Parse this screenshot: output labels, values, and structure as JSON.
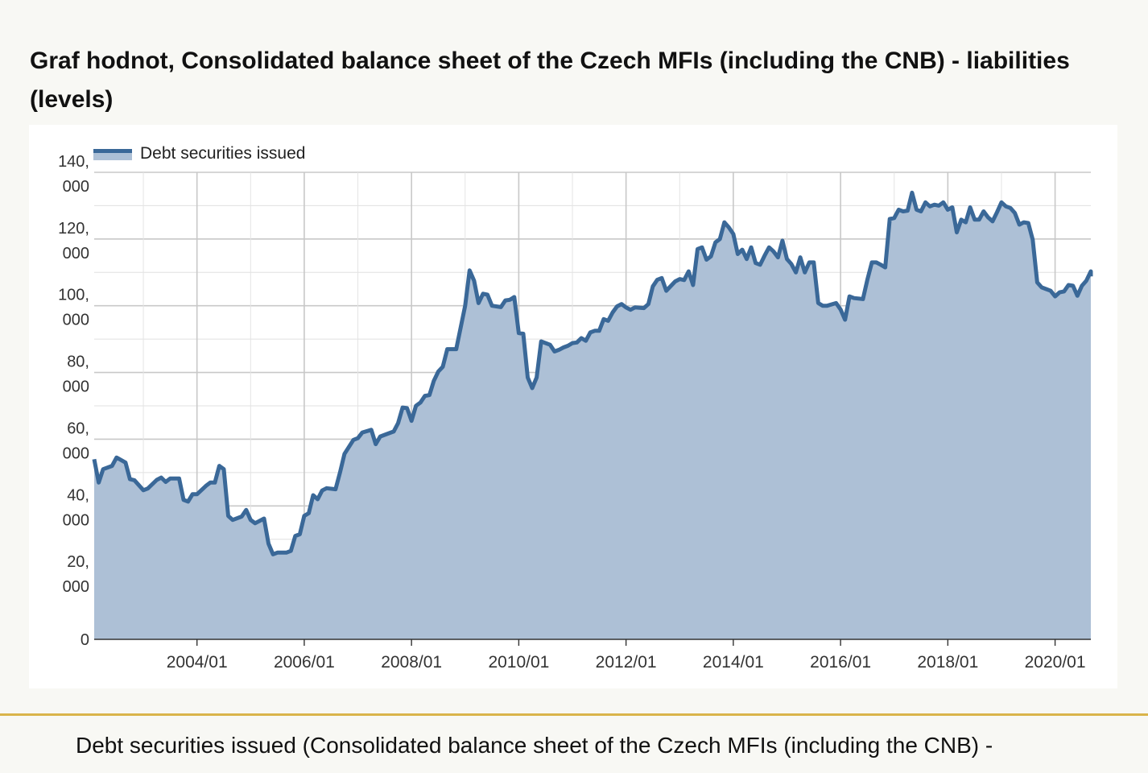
{
  "page": {
    "title": "Graf hodnot, Consolidated balance sheet of the Czech MFIs (including the CNB) - liabilities (levels)",
    "footer_caption": "Debt securities issued (Consolidated balance sheet of the Czech MFIs (including the CNB) -"
  },
  "colors": {
    "line": "#3a6898",
    "area": "#adc0d6",
    "grid": "#cccccc",
    "accent_divider": "#d9b44a"
  },
  "chart_data": {
    "type": "area",
    "title": "",
    "xlabel": "",
    "ylabel": "",
    "legend_position": "top-left",
    "grid": true,
    "x_ticks": [
      "2004/01",
      "2006/01",
      "2008/01",
      "2010/01",
      "2012/01",
      "2014/01",
      "2016/01",
      "2018/01",
      "2020/01"
    ],
    "y_ticks": [
      {
        "value": 0,
        "lines": [
          "0"
        ]
      },
      {
        "value": 20000,
        "lines": [
          "20,",
          "000"
        ]
      },
      {
        "value": 40000,
        "lines": [
          "40,",
          "000"
        ]
      },
      {
        "value": 60000,
        "lines": [
          "60,",
          "000"
        ]
      },
      {
        "value": 80000,
        "lines": [
          "80,",
          "000"
        ]
      },
      {
        "value": 100000,
        "lines": [
          "100,",
          "000"
        ]
      },
      {
        "value": 120000,
        "lines": [
          "120,",
          "000"
        ]
      },
      {
        "value": 140000,
        "lines": [
          "140,",
          "000"
        ]
      }
    ],
    "xlim": [
      "2002/02",
      "2020/09"
    ],
    "ylim": [
      0,
      140000
    ],
    "series": [
      {
        "name": "Debt securities issued",
        "points": [
          [
            "2002/02",
            54000
          ],
          [
            "2002/03",
            47000
          ],
          [
            "2002/04",
            51000
          ],
          [
            "2002/06",
            52000
          ],
          [
            "2002/07",
            54500
          ],
          [
            "2002/09",
            53000
          ],
          [
            "2002/10",
            48000
          ],
          [
            "2002/11",
            47700
          ],
          [
            "2003/01",
            44700
          ],
          [
            "2003/02",
            45200
          ],
          [
            "2003/04",
            47800
          ],
          [
            "2003/05",
            48500
          ],
          [
            "2003/06",
            47200
          ],
          [
            "2003/07",
            48200
          ],
          [
            "2003/09",
            48200
          ],
          [
            "2003/10",
            41800
          ],
          [
            "2003/11",
            41300
          ],
          [
            "2003/12",
            43500
          ],
          [
            "2004/01",
            43500
          ],
          [
            "2004/03",
            46000
          ],
          [
            "2004/04",
            47000
          ],
          [
            "2004/05",
            47000
          ],
          [
            "2004/06",
            52000
          ],
          [
            "2004/07",
            51000
          ],
          [
            "2004/08",
            37000
          ],
          [
            "2004/09",
            35800
          ],
          [
            "2004/11",
            36800
          ],
          [
            "2004/12",
            38800
          ],
          [
            "2005/01",
            35800
          ],
          [
            "2005/02",
            34800
          ],
          [
            "2005/04",
            36200
          ],
          [
            "2005/05",
            28700
          ],
          [
            "2005/06",
            25500
          ],
          [
            "2005/07",
            26000
          ],
          [
            "2005/09",
            26000
          ],
          [
            "2005/10",
            26500
          ],
          [
            "2005/11",
            31000
          ],
          [
            "2005/12",
            31500
          ],
          [
            "2006/01",
            37000
          ],
          [
            "2006/02",
            37800
          ],
          [
            "2006/03",
            43200
          ],
          [
            "2006/04",
            42000
          ],
          [
            "2006/05",
            44600
          ],
          [
            "2006/06",
            45300
          ],
          [
            "2006/08",
            45000
          ],
          [
            "2006/09",
            50000
          ],
          [
            "2006/10",
            55600
          ],
          [
            "2006/12",
            59800
          ],
          [
            "2007/01",
            60300
          ],
          [
            "2007/02",
            62000
          ],
          [
            "2007/04",
            62800
          ],
          [
            "2007/05",
            58500
          ],
          [
            "2007/06",
            60800
          ],
          [
            "2007/07",
            61300
          ],
          [
            "2007/09",
            62300
          ],
          [
            "2007/10",
            64800
          ],
          [
            "2007/11",
            69500
          ],
          [
            "2007/12",
            69300
          ],
          [
            "2008/01",
            65500
          ],
          [
            "2008/02",
            70000
          ],
          [
            "2008/03",
            71000
          ],
          [
            "2008/04",
            73000
          ],
          [
            "2008/05",
            73200
          ],
          [
            "2008/06",
            77500
          ],
          [
            "2008/07",
            80300
          ],
          [
            "2008/08",
            81700
          ],
          [
            "2008/09",
            87000
          ],
          [
            "2008/11",
            87000
          ],
          [
            "2009/01",
            100000
          ],
          [
            "2009/02",
            110600
          ],
          [
            "2009/03",
            107500
          ],
          [
            "2009/04",
            100800
          ],
          [
            "2009/05",
            103600
          ],
          [
            "2009/06",
            103300
          ],
          [
            "2009/07",
            100000
          ],
          [
            "2009/09",
            99600
          ],
          [
            "2009/10",
            101600
          ],
          [
            "2009/11",
            101800
          ],
          [
            "2009/12",
            102600
          ],
          [
            "2010/01",
            91800
          ],
          [
            "2010/02",
            91600
          ],
          [
            "2010/03",
            78500
          ],
          [
            "2010/04",
            75300
          ],
          [
            "2010/05",
            78500
          ],
          [
            "2010/06",
            89300
          ],
          [
            "2010/08",
            88300
          ],
          [
            "2010/09",
            86300
          ],
          [
            "2010/10",
            86800
          ],
          [
            "2010/11",
            87500
          ],
          [
            "2010/12",
            88000
          ],
          [
            "2011/01",
            88800
          ],
          [
            "2011/02",
            89000
          ],
          [
            "2011/03",
            90300
          ],
          [
            "2011/04",
            89500
          ],
          [
            "2011/05",
            92000
          ],
          [
            "2011/06",
            92500
          ],
          [
            "2011/07",
            92500
          ],
          [
            "2011/08",
            96000
          ],
          [
            "2011/09",
            95500
          ],
          [
            "2011/10",
            98000
          ],
          [
            "2011/11",
            99800
          ],
          [
            "2011/12",
            100500
          ],
          [
            "2012/01",
            99500
          ],
          [
            "2012/02",
            98800
          ],
          [
            "2012/03",
            99500
          ],
          [
            "2012/05",
            99300
          ],
          [
            "2012/06",
            100500
          ],
          [
            "2012/07",
            105800
          ],
          [
            "2012/08",
            107800
          ],
          [
            "2012/09",
            108300
          ],
          [
            "2012/10",
            104500
          ],
          [
            "2012/12",
            107300
          ],
          [
            "2013/01",
            108000
          ],
          [
            "2013/02",
            107700
          ],
          [
            "2013/03",
            110300
          ],
          [
            "2013/04",
            106200
          ],
          [
            "2013/05",
            117000
          ],
          [
            "2013/06",
            117500
          ],
          [
            "2013/07",
            113800
          ],
          [
            "2013/08",
            114800
          ],
          [
            "2013/09",
            119000
          ],
          [
            "2013/10",
            120000
          ],
          [
            "2013/11",
            125000
          ],
          [
            "2013/12",
            123500
          ],
          [
            "2014/01",
            121500
          ],
          [
            "2014/02",
            115500
          ],
          [
            "2014/03",
            116800
          ],
          [
            "2014/04",
            114000
          ],
          [
            "2014/05",
            117500
          ],
          [
            "2014/06",
            112800
          ],
          [
            "2014/07",
            112300
          ],
          [
            "2014/08",
            115000
          ],
          [
            "2014/09",
            117500
          ],
          [
            "2014/10",
            116300
          ],
          [
            "2014/11",
            114500
          ],
          [
            "2014/12",
            119500
          ],
          [
            "2015/01",
            114000
          ],
          [
            "2015/02",
            112500
          ],
          [
            "2015/03",
            110000
          ],
          [
            "2015/04",
            114500
          ],
          [
            "2015/05",
            110000
          ],
          [
            "2015/06",
            113000
          ],
          [
            "2015/07",
            113000
          ],
          [
            "2015/08",
            100800
          ],
          [
            "2015/09",
            100000
          ],
          [
            "2015/10",
            100000
          ],
          [
            "2015/12",
            100800
          ],
          [
            "2016/01",
            98900
          ],
          [
            "2016/02",
            95800
          ],
          [
            "2016/03",
            102800
          ],
          [
            "2016/04",
            102300
          ],
          [
            "2016/06",
            102000
          ],
          [
            "2016/07",
            107800
          ],
          [
            "2016/08",
            113000
          ],
          [
            "2016/09",
            113000
          ],
          [
            "2016/10",
            112300
          ],
          [
            "2016/11",
            111500
          ],
          [
            "2016/12",
            126000
          ],
          [
            "2017/01",
            126300
          ],
          [
            "2017/02",
            128800
          ],
          [
            "2017/03",
            128300
          ],
          [
            "2017/04",
            128500
          ],
          [
            "2017/05",
            133900
          ],
          [
            "2017/06",
            128800
          ],
          [
            "2017/07",
            128300
          ],
          [
            "2017/08",
            131000
          ],
          [
            "2017/09",
            129800
          ],
          [
            "2017/10",
            130300
          ],
          [
            "2017/11",
            130000
          ],
          [
            "2017/12",
            131000
          ],
          [
            "2018/01",
            128800
          ],
          [
            "2018/02",
            129500
          ],
          [
            "2018/03",
            122000
          ],
          [
            "2018/04",
            125800
          ],
          [
            "2018/05",
            125000
          ],
          [
            "2018/06",
            129500
          ],
          [
            "2018/07",
            125800
          ],
          [
            "2018/08",
            125800
          ],
          [
            "2018/09",
            128300
          ],
          [
            "2018/10",
            126500
          ],
          [
            "2018/11",
            125300
          ],
          [
            "2018/12",
            128000
          ],
          [
            "2019/01",
            131000
          ],
          [
            "2019/02",
            129800
          ],
          [
            "2019/03",
            129300
          ],
          [
            "2019/04",
            127800
          ],
          [
            "2019/05",
            124300
          ],
          [
            "2019/06",
            125000
          ],
          [
            "2019/07",
            124800
          ],
          [
            "2019/08",
            119800
          ],
          [
            "2019/09",
            107000
          ],
          [
            "2019/10",
            105500
          ],
          [
            "2019/11",
            105000
          ],
          [
            "2019/12",
            104500
          ],
          [
            "2020/01",
            102800
          ],
          [
            "2020/02",
            104000
          ],
          [
            "2020/03",
            104300
          ],
          [
            "2020/04",
            106200
          ],
          [
            "2020/05",
            106000
          ],
          [
            "2020/06",
            103000
          ],
          [
            "2020/07",
            106000
          ],
          [
            "2020/08",
            107500
          ],
          [
            "2020/09",
            110300
          ],
          [
            "2020/09",
            108800
          ]
        ]
      }
    ]
  }
}
